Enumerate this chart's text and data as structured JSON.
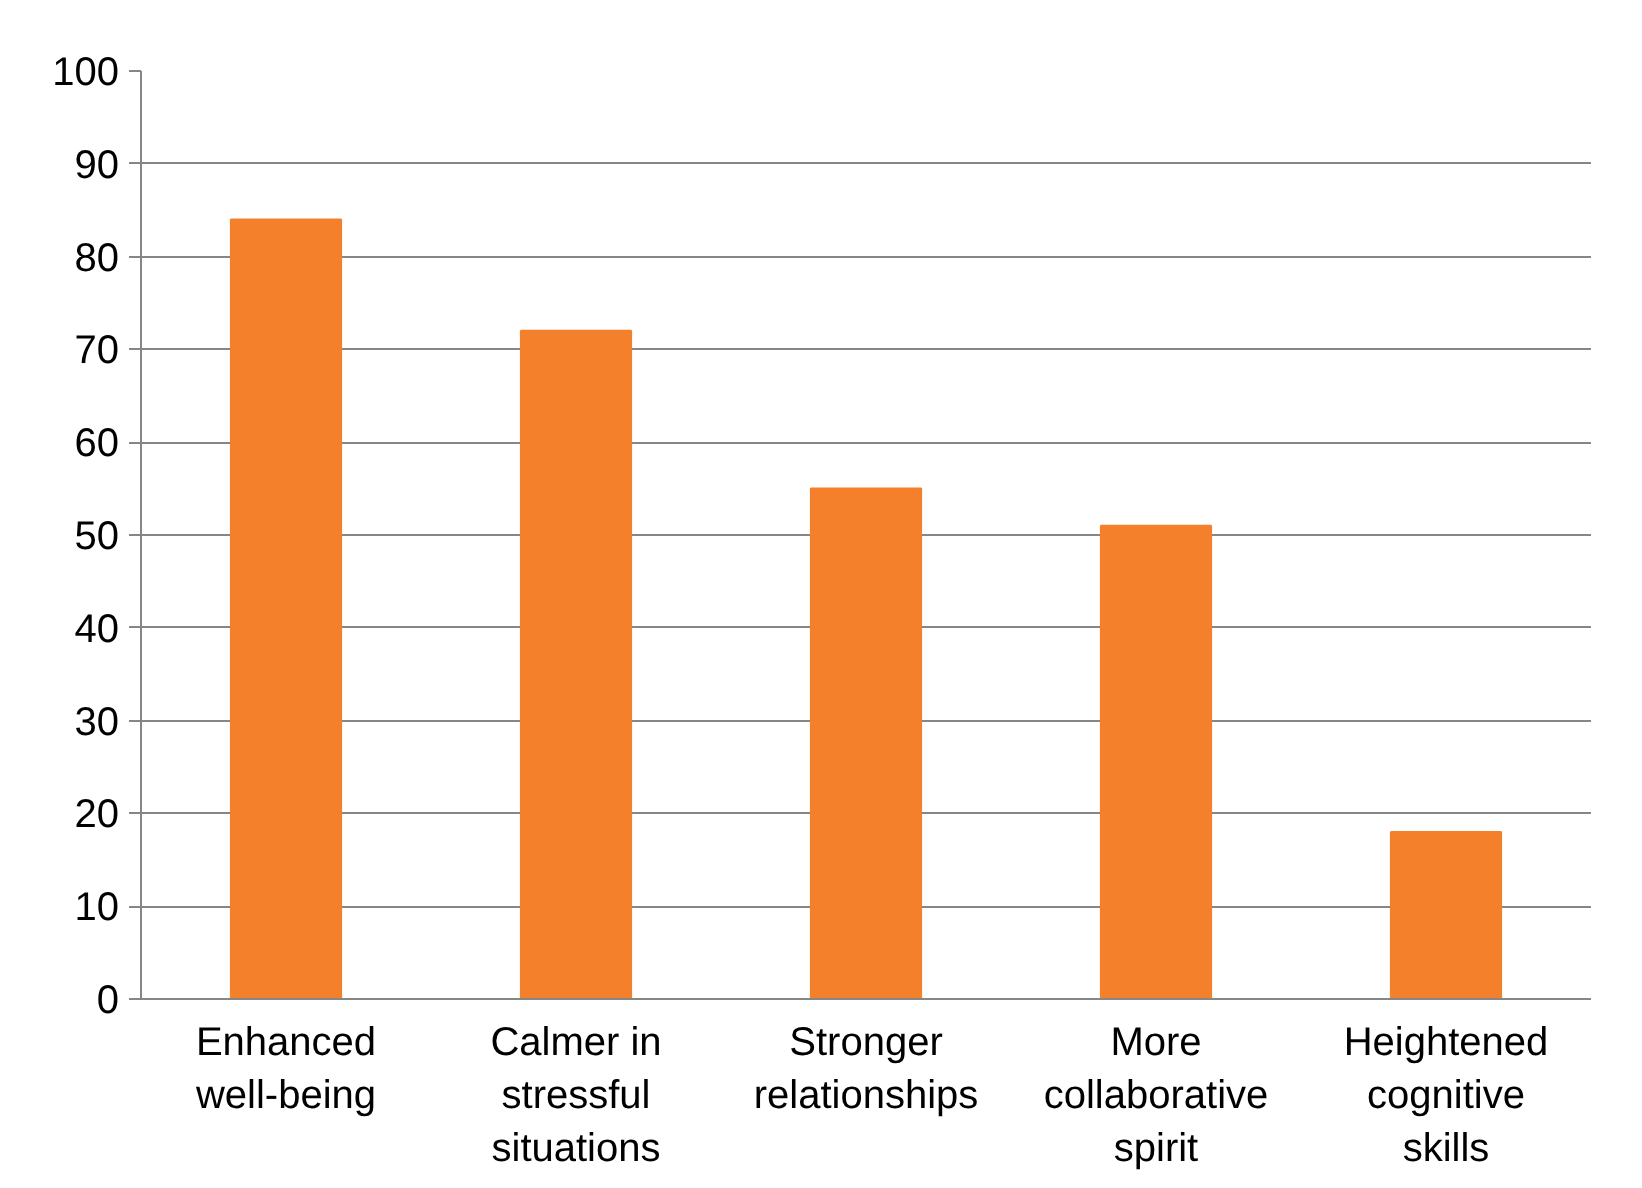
{
  "chart_data": {
    "type": "bar",
    "categories": [
      "Enhanced well-being",
      "Calmer in stressful situations",
      "Stronger relationships",
      "More collaborative spirit",
      "Heightened cognitive skills"
    ],
    "values": [
      84,
      72,
      55,
      51,
      18
    ],
    "color": "#f4802c",
    "ylim": [
      0,
      100
    ],
    "yticks": [
      0,
      10,
      20,
      30,
      40,
      50,
      60,
      70,
      80,
      90,
      100
    ],
    "grid": "y"
  }
}
